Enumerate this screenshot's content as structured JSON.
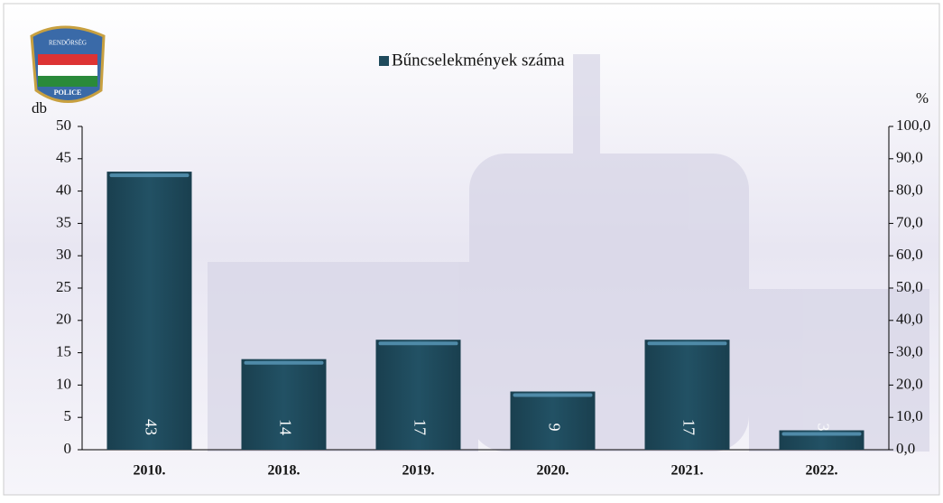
{
  "chart_data": {
    "type": "bar",
    "logo": {
      "top": "RENDŐRSÉG",
      "bottom": "POLICE"
    },
    "y_label": "db",
    "y2_label": "%",
    "categories": [
      "2010.",
      "2018.",
      "2019.",
      "2020.",
      "2021.",
      "2022."
    ],
    "series": [
      {
        "name": "Bűncselekmények száma",
        "color": "#1f4a5c",
        "values": [
          43,
          14,
          17,
          9,
          17,
          3
        ]
      }
    ],
    "ylim": [
      0,
      50
    ],
    "yticks": [
      0,
      5,
      10,
      15,
      20,
      25,
      30,
      35,
      40,
      45,
      50
    ],
    "y2lim": [
      0,
      100
    ],
    "y2ticks": [
      {
        "value": 0,
        "label": "0,0"
      },
      {
        "value": 10,
        "label": "10,0"
      },
      {
        "value": 20,
        "label": "20,0"
      },
      {
        "value": 30,
        "label": "30,0"
      },
      {
        "value": 40,
        "label": "40,0"
      },
      {
        "value": 50,
        "label": "50,0"
      },
      {
        "value": 60,
        "label": "60,0"
      },
      {
        "value": 70,
        "label": "70,0"
      },
      {
        "value": 80,
        "label": "80,0"
      },
      {
        "value": 90,
        "label": "90,0"
      },
      {
        "value": 100,
        "label": "100,0"
      }
    ],
    "legend": "top"
  }
}
